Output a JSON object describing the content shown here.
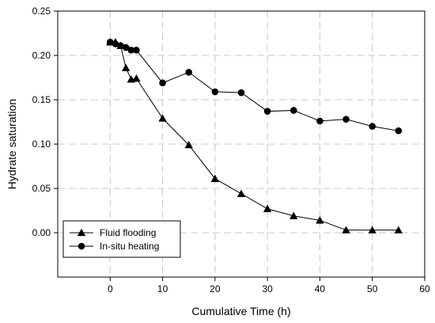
{
  "chart_data": {
    "type": "line",
    "title": "",
    "xlabel": "Cumulative Time (h)",
    "ylabel": "Hydrate saturation",
    "xlim": [
      -10,
      60
    ],
    "ylim": [
      -0.05,
      0.25
    ],
    "x_ticks": [
      0,
      10,
      20,
      30,
      40,
      50,
      60
    ],
    "y_ticks": [
      0.0,
      0.05,
      0.1,
      0.15,
      0.2,
      0.25
    ],
    "x_tick_labels": [
      "0",
      "10",
      "20",
      "30",
      "40",
      "50",
      "60"
    ],
    "y_tick_labels": [
      "0.00",
      "0.05",
      "0.10",
      "0.15",
      "0.20",
      "0.25"
    ],
    "grid": true,
    "legend_position": "bottom-left",
    "series": [
      {
        "name": "Fluid flooding",
        "marker": "triangle",
        "color": "#000000",
        "x": [
          0,
          1,
          2,
          3,
          4,
          5,
          10,
          15,
          20,
          25,
          30,
          35,
          40,
          45,
          50,
          55
        ],
        "y": [
          0.215,
          0.215,
          0.211,
          0.186,
          0.173,
          0.174,
          0.129,
          0.099,
          0.061,
          0.044,
          0.027,
          0.019,
          0.014,
          0.003,
          0.003,
          0.003
        ]
      },
      {
        "name": "In-situ heating",
        "marker": "circle",
        "color": "#000000",
        "x": [
          0,
          1,
          2,
          3,
          4,
          5,
          10,
          15,
          20,
          25,
          30,
          35,
          40,
          45,
          50,
          55
        ],
        "y": [
          0.215,
          0.213,
          0.211,
          0.209,
          0.206,
          0.206,
          0.169,
          0.181,
          0.159,
          0.158,
          0.137,
          0.138,
          0.126,
          0.128,
          0.12,
          0.115
        ]
      }
    ]
  }
}
